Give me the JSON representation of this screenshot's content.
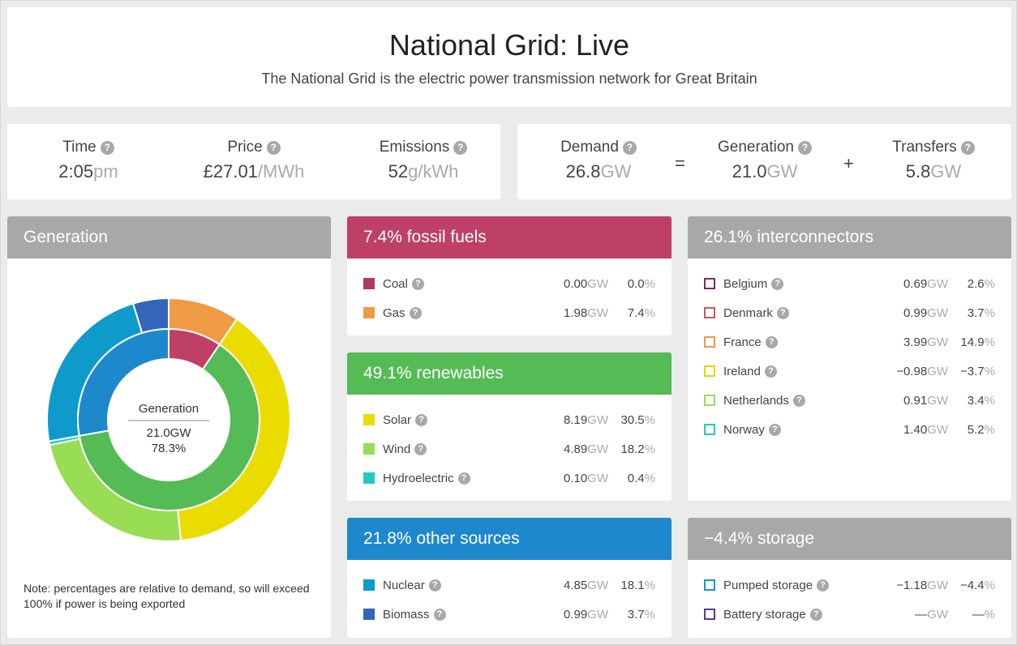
{
  "header": {
    "title": "National Grid: Live",
    "subtitle": "The National Grid is the electric power transmission network for Great Britain"
  },
  "stats": {
    "time": {
      "label": "Time",
      "value": "2:05",
      "unit": "pm"
    },
    "price": {
      "label": "Price",
      "value": "£27.01",
      "unit": "/MWh"
    },
    "emissions": {
      "label": "Emissions",
      "value": "52",
      "unit": "g/kWh"
    },
    "demand": {
      "label": "Demand",
      "value": "26.8",
      "unit": "GW"
    },
    "generation": {
      "label": "Generation",
      "value": "21.0",
      "unit": "GW"
    },
    "transfers": {
      "label": "Transfers",
      "value": "5.8",
      "unit": "GW"
    },
    "ops": {
      "equals": "=",
      "plus": "+"
    },
    "help_glyph": "?"
  },
  "generation_panel": {
    "title": "Generation",
    "center_label": "Generation",
    "center_value": "21.0GW",
    "center_pct": "78.3%",
    "note": "Note: percentages are relative to demand, so will exceed 100% if power is being exported"
  },
  "fossil": {
    "title": "7.4% fossil fuels",
    "color": "#bf4066",
    "rows": [
      {
        "label": "Coal",
        "gw": "0.00",
        "pct": "0.0",
        "color": "#b03a60"
      },
      {
        "label": "Gas",
        "gw": "1.98",
        "pct": "7.4",
        "color": "#ef9a44"
      }
    ]
  },
  "renewables": {
    "title": "49.1% renewables",
    "color": "#55bb55",
    "rows": [
      {
        "label": "Solar",
        "gw": "8.19",
        "pct": "30.5",
        "color": "#ebdc00"
      },
      {
        "label": "Wind",
        "gw": "4.89",
        "pct": "18.2",
        "color": "#99dd55"
      },
      {
        "label": "Hydroelectric",
        "gw": "0.10",
        "pct": "0.4",
        "color": "#22ccbb"
      }
    ]
  },
  "other": {
    "title": "21.8% other sources",
    "color": "#1e88cc",
    "rows": [
      {
        "label": "Nuclear",
        "gw": "4.85",
        "pct": "18.1",
        "color": "#0f9acc"
      },
      {
        "label": "Biomass",
        "gw": "0.99",
        "pct": "3.7",
        "color": "#3366bb"
      }
    ]
  },
  "interconnectors": {
    "title": "26.1% interconnectors",
    "color": "#a8a8a8",
    "rows": [
      {
        "label": "Belgium",
        "gw": "0.69",
        "pct": "2.6",
        "color": "#7a2a6a"
      },
      {
        "label": "Denmark",
        "gw": "0.99",
        "pct": "3.7",
        "color": "#c85a5a"
      },
      {
        "label": "France",
        "gw": "3.99",
        "pct": "14.9",
        "color": "#ef9a44"
      },
      {
        "label": "Ireland",
        "gw": "−0.98",
        "pct": "−3.7",
        "color": "#e6d500"
      },
      {
        "label": "Netherlands",
        "gw": "0.91",
        "pct": "3.4",
        "color": "#99dd55"
      },
      {
        "label": "Norway",
        "gw": "1.40",
        "pct": "5.2",
        "color": "#22ccbb"
      }
    ]
  },
  "storage": {
    "title": "−4.4% storage",
    "color": "#a8a8a8",
    "rows": [
      {
        "label": "Pumped storage",
        "gw": "−1.18",
        "pct": "−4.4",
        "color": "#0f9acc"
      },
      {
        "label": "Battery storage",
        "gw": "—",
        "pct": "—",
        "color": "#5a3a8a"
      }
    ]
  },
  "units": {
    "gw": "GW",
    "pct": "%"
  },
  "donut": {
    "inner": [
      {
        "name": "fossil",
        "value": 7.4,
        "color": "#bf4066"
      },
      {
        "name": "renewables",
        "value": 49.1,
        "color": "#55bb55"
      },
      {
        "name": "other",
        "value": 21.8,
        "color": "#1e88cc"
      }
    ],
    "outer": [
      {
        "name": "Gas",
        "value": 7.4,
        "color": "#ef9a44"
      },
      {
        "name": "Solar",
        "value": 30.5,
        "color": "#ebdc00"
      },
      {
        "name": "Wind",
        "value": 18.2,
        "color": "#99dd55"
      },
      {
        "name": "Hydroelectric",
        "value": 0.4,
        "color": "#22ccbb"
      },
      {
        "name": "Nuclear",
        "value": 18.1,
        "color": "#0f9acc"
      },
      {
        "name": "Biomass",
        "value": 3.7,
        "color": "#3366bb"
      }
    ]
  }
}
